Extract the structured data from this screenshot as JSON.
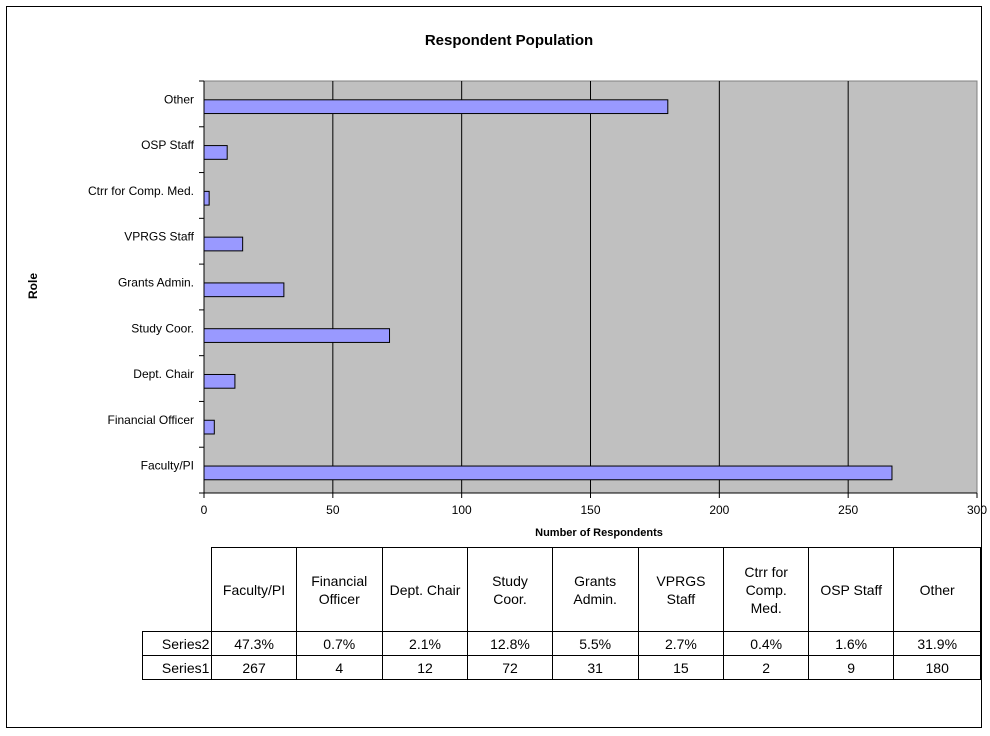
{
  "chart_data": {
    "type": "bar",
    "orientation": "horizontal",
    "title": "Respondent Population",
    "xlabel": "Number of Respondents",
    "ylabel": "Role",
    "categories": [
      "Faculty/PI",
      "Financial Officer",
      "Dept. Chair",
      "Study Coor.",
      "Grants Admin.",
      "VPRGS Staff",
      "Ctrr for Comp. Med.",
      "OSP Staff",
      "Other"
    ],
    "x_ticks": [
      "0",
      "50",
      "100",
      "150",
      "200",
      "250",
      "300"
    ],
    "xlim": [
      0,
      300
    ],
    "grid": true,
    "series": [
      {
        "name": "Series1",
        "values": [
          267,
          4,
          12,
          72,
          31,
          15,
          2,
          9,
          180
        ],
        "color": "#9999FF"
      },
      {
        "name": "Series2",
        "labels": [
          "47.3%",
          "0.7%",
          "2.1%",
          "12.8%",
          "5.5%",
          "2.7%",
          "0.4%",
          "1.6%",
          "31.9%"
        ]
      }
    ],
    "table_headers": [
      [
        "Faculty/PI"
      ],
      [
        "Financial",
        "Officer"
      ],
      [
        "Dept. Chair"
      ],
      [
        "Study",
        "Coor."
      ],
      [
        "Grants",
        "Admin."
      ],
      [
        "VPRGS",
        "Staff"
      ],
      [
        "Ctrr for",
        "Comp.",
        "Med."
      ],
      [
        "OSP Staff"
      ],
      [
        "Other"
      ]
    ],
    "colors": {
      "plot_bg": "#C0C0C0",
      "bar": "#9999FF",
      "bar_border": "#000000",
      "grid": "#000000"
    }
  }
}
